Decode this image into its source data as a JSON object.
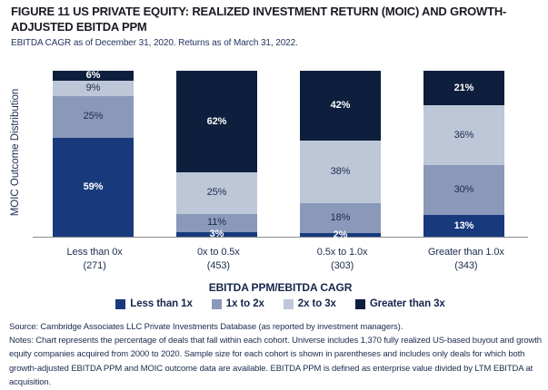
{
  "figure": {
    "title": "FIGURE 11 US PRIVATE EQUITY: REALIZED INVESTMENT RETURN (MOIC) AND GROWTH-ADJUSTED EBITDA PPM",
    "subtitle": "EBITDA CAGR as of December 31, 2020. Returns as of March 31, 2022."
  },
  "chart_data": {
    "type": "bar",
    "variant": "stacked-100",
    "title": "US Private Equity: Realized Investment Return (MOIC) and Growth-Adjusted EBITDA PPM",
    "categories": [
      "Less than 0x",
      "0x to 0.5x",
      "0.5x to 1.0x",
      "Greater than 1.0x"
    ],
    "sample_sizes": [
      "(271)",
      "(453)",
      "(303)",
      "(343)"
    ],
    "series": [
      {
        "name": "Less than 1x",
        "color": "#183a7d",
        "text_color": "#ffffff",
        "bold_labels": true,
        "values": [
          59,
          3,
          2,
          13
        ]
      },
      {
        "name": "1x to 2x",
        "color": "#8a99ba",
        "text_color": "#1b2b4e",
        "bold_labels": false,
        "values": [
          25,
          11,
          18,
          30
        ]
      },
      {
        "name": "2x to 3x",
        "color": "#bdc7d8",
        "text_color": "#1b2b4e",
        "bold_labels": false,
        "values": [
          9,
          25,
          38,
          36
        ]
      },
      {
        "name": "Greater than 3x",
        "color": "#0d1f3d",
        "text_color": "#ffffff",
        "bold_labels": true,
        "values": [
          6,
          62,
          42,
          21
        ]
      }
    ],
    "value_suffix": "%",
    "xlabel": "EBITDA PPM/EBITDA CAGR",
    "ylabel": "MOIC Outcome Distribution",
    "ylim": [
      0,
      100
    ],
    "grid": false,
    "legend_position": "bottom",
    "axis_line_color": "#8c8c8c"
  },
  "footer": {
    "source": "Source: Cambridge Associates LLC Private Investments Database (as reported by investment managers).",
    "notes": "Notes: Chart represents the percentage of deals that fall within each cohort. Universe includes 1,370 fully realized US-based buyout and growth equity companies acquired from 2000 to 2020. Sample size for each cohort is shown in parentheses and includes only deals for which both growth-adjusted EBITDA PPM and MOIC outcome data are available. EBITDA PPM is defined as enterprise value divided by LTM EBITDA at acquisition."
  }
}
